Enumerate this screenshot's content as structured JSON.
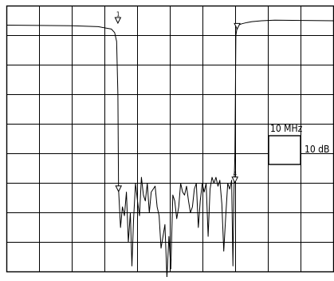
{
  "chart_data": {
    "type": "line",
    "title": "",
    "xlabel": "",
    "ylabel": "",
    "scale": {
      "freq_per_div": "10 MHz",
      "amp_per_div": "10 dB"
    },
    "grid": true,
    "divisions": {
      "x": 10,
      "y": 9
    },
    "xlim": [
      0,
      100
    ],
    "ylim": [
      -90,
      0
    ],
    "markers": [
      {
        "label": "1",
        "x_mhz": 34,
        "y_db": -5
      },
      {
        "label": "",
        "x_mhz": 70.5,
        "y_db": -7
      },
      {
        "label": "",
        "x_mhz": 34.2,
        "y_db": -62
      },
      {
        "label": "4",
        "x_mhz": 69.8,
        "y_db": -59
      }
    ],
    "series": [
      {
        "x": [
          0,
          10,
          20,
          28,
          32,
          33,
          33.6,
          34,
          34.2,
          34.4,
          34.8,
          35.4,
          36,
          36.6,
          37.2,
          37.8,
          38.3,
          38.8,
          39.4,
          40,
          40.6,
          41.2,
          41.8,
          42.4,
          43,
          43.6,
          44.2,
          44.8,
          45.4,
          46,
          46.6,
          47.2,
          47.8,
          48.4,
          49,
          49.6,
          50.2,
          50.8,
          51.4,
          52,
          52.6,
          53.2,
          53.8,
          54.4,
          55,
          55.6,
          56.2,
          56.8,
          57.4,
          58,
          58.6,
          59.2,
          59.8,
          60.4,
          61,
          61.6,
          62.2,
          62.8,
          63.4,
          64,
          64.6,
          65.2,
          65.8,
          66.4,
          67,
          67.6,
          68.2,
          68.8,
          69.2,
          69.5,
          69.8,
          70.1,
          70.5,
          70.8,
          71.2,
          72,
          73.5,
          75,
          78,
          82,
          90,
          100
        ],
        "y": [
          -6.5,
          -6.6,
          -6.7,
          -7,
          -7.8,
          -9,
          -12,
          -30,
          -62,
          -66,
          -75,
          -68,
          -71,
          -63,
          -80,
          -70,
          -88,
          -72,
          -60,
          -66,
          -71,
          -58,
          -64,
          -66,
          -60,
          -70,
          -63,
          -62,
          -61,
          -68,
          -71,
          -82,
          -78,
          -74,
          -92,
          -78,
          -89,
          -64,
          -66,
          -72,
          -68,
          -60,
          -63,
          -64,
          -61,
          -66,
          -70,
          -68,
          -62,
          -60,
          -75,
          -66,
          -60,
          -63,
          -60,
          -78,
          -62,
          -58,
          -60,
          -58,
          -61,
          -59,
          -67,
          -83,
          -71,
          -60,
          -62,
          -59,
          -88,
          -64,
          -50,
          -10,
          -7,
          -6.6,
          -6.3,
          -6,
          -5.6,
          -5.3,
          -5,
          -4.8,
          -4.9,
          -5
        ]
      }
    ]
  }
}
